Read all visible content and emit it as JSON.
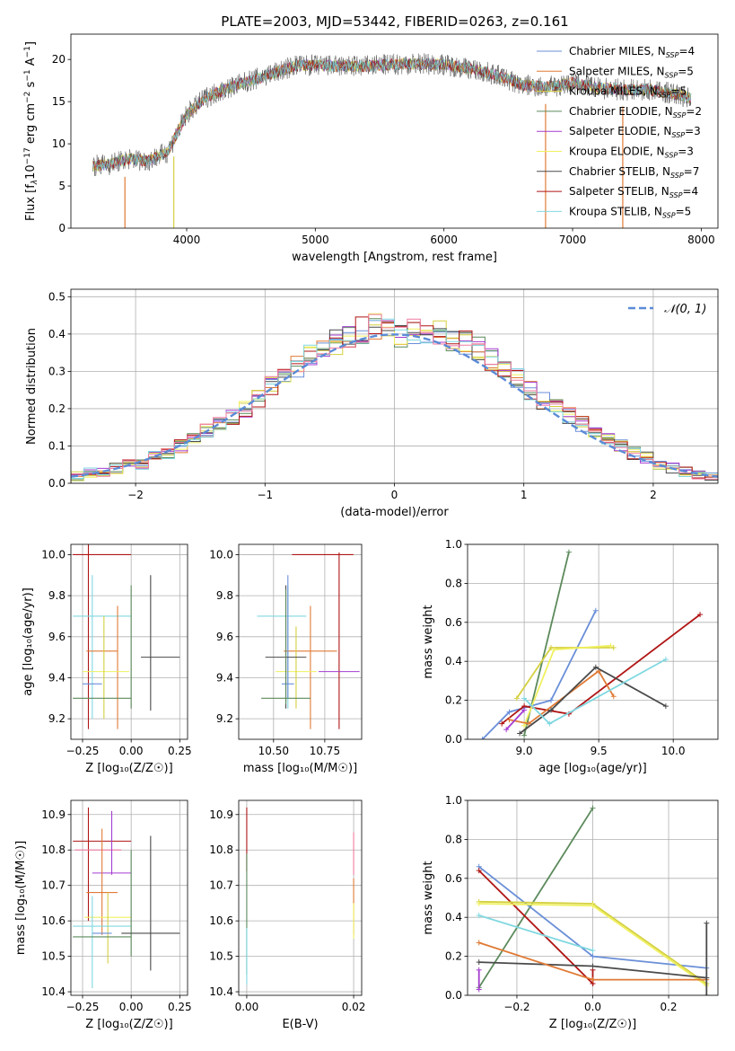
{
  "figure": {
    "title": "PLATE=2003, MJD=53442, FIBERID=0263, z=0.161"
  },
  "colors": {
    "Chabrier MILES": "#6a8fd8",
    "Salpeter MILES": "#e07a35",
    "Kroupa MILES": "#d4d040",
    "Chabrier ELODIE": "#5c8a5c",
    "Salpeter ELODIE": "#a53cd0",
    "Kroupa ELODIE": "#f0f060",
    "Chabrier STELIB": "#4a4a4a",
    "Salpeter STELIB": "#b01515",
    "Kroupa STELIB": "#80d8e0",
    "pink": "#f07aa0",
    "gauss": "#5b8bd6"
  },
  "chart_data": [
    {
      "id": "spectrum",
      "type": "line",
      "title": "PLATE=2003, MJD=53442, FIBERID=0263, z=0.161",
      "xlabel": "wavelength [Angstrom, rest frame]",
      "ylabel_parts": [
        "Flux [f",
        "λ",
        "10",
        "−17",
        " erg cm",
        "−2",
        " s",
        "−1",
        " A",
        "−1",
        "]"
      ],
      "xlim": [
        3100,
        8130
      ],
      "ylim": [
        0,
        23
      ],
      "xticks": [
        4000,
        5000,
        6000,
        7000,
        8000
      ],
      "yticks": [
        0,
        5,
        10,
        15,
        20
      ],
      "grid": false,
      "legend_loc": "upper right",
      "envelope": {
        "x": [
          3270,
          3400,
          3550,
          3700,
          3850,
          4000,
          4150,
          4300,
          4500,
          4700,
          4850,
          5000,
          5200,
          5400,
          5600,
          5800,
          6000,
          6200,
          6400,
          6600,
          6800,
          7000,
          7200,
          7400,
          7600,
          7800,
          7920
        ],
        "y": [
          7.4,
          7.6,
          8.2,
          8.0,
          9.0,
          13.5,
          15.5,
          16.5,
          17.5,
          18.5,
          19.3,
          19.3,
          19.2,
          19.2,
          19.4,
          19.5,
          19.4,
          18.9,
          18.2,
          17.0,
          16.7,
          17.2,
          16.6,
          16.4,
          16.4,
          15.9,
          15.4
        ]
      },
      "dips": [
        {
          "x": 3520,
          "y": 0
        },
        {
          "x": 3900,
          "y": 0
        },
        {
          "x": 6790,
          "y": 0
        },
        {
          "x": 7390,
          "y": 0
        }
      ],
      "series": [
        {
          "label": "Chabrier MILES",
          "nssp": "4",
          "color": "#6a8fd8"
        },
        {
          "label": "Salpeter MILES",
          "nssp": "5",
          "color": "#e07a35"
        },
        {
          "label": "Kroupa MILES",
          "nssp": "5",
          "color": "#d4d040"
        },
        {
          "label": "Chabrier ELODIE",
          "nssp": "2",
          "color": "#5c8a5c"
        },
        {
          "label": "Salpeter ELODIE",
          "nssp": "3",
          "color": "#a53cd0"
        },
        {
          "label": "Kroupa ELODIE",
          "nssp": "3",
          "color": "#f0f060"
        },
        {
          "label": "Chabrier STELIB",
          "nssp": "7",
          "color": "#4a4a4a"
        },
        {
          "label": "Salpeter STELIB",
          "nssp": "4",
          "color": "#b01515"
        },
        {
          "label": "Kroupa STELIB",
          "nssp": "5",
          "color": "#80d8e0"
        }
      ]
    },
    {
      "id": "hist",
      "type": "bar",
      "xlabel": "(data-model)/error",
      "ylabel": "Normed distribution",
      "xlim": [
        -2.5,
        2.5
      ],
      "ylim": [
        0,
        0.52
      ],
      "xticks": [
        -2,
        -1,
        0,
        1,
        2
      ],
      "xtick_labels": [
        "−2",
        "−1",
        "0",
        "1",
        "2"
      ],
      "yticks": [
        0,
        0.1,
        0.2,
        0.3,
        0.4,
        0.5
      ],
      "ytick_labels": [
        "0.0",
        "0.1",
        "0.2",
        "0.3",
        "0.4",
        "0.5"
      ],
      "grid": true,
      "legend_loc": "upper right",
      "gaussian": {
        "label": "𝒩(0, 1)",
        "color": "#5b8bd6"
      },
      "bin_edges_from": -2.5,
      "bin_width": 0.1,
      "nbins": 50,
      "base_values": [
        0.02,
        0.03,
        0.03,
        0.04,
        0.05,
        0.05,
        0.07,
        0.08,
        0.1,
        0.12,
        0.14,
        0.16,
        0.18,
        0.2,
        0.23,
        0.26,
        0.28,
        0.31,
        0.34,
        0.36,
        0.38,
        0.4,
        0.41,
        0.42,
        0.41,
        0.4,
        0.41,
        0.4,
        0.4,
        0.39,
        0.38,
        0.36,
        0.33,
        0.3,
        0.28,
        0.25,
        0.22,
        0.2,
        0.18,
        0.16,
        0.14,
        0.12,
        0.1,
        0.08,
        0.07,
        0.05,
        0.04,
        0.03,
        0.02,
        0.02
      ],
      "series_colors": [
        "#6a8fd8",
        "#e07a35",
        "#d4d040",
        "#5c8a5c",
        "#a53cd0",
        "#f0f060",
        "#4a4a4a",
        "#b01515",
        "#80d8e0",
        "#f07aa0"
      ]
    },
    {
      "id": "age_Z",
      "type": "scatter",
      "xlabel": "Z [log₁₀(Z/Z☉)]",
      "ylabel": "age  [log₁₀(age/yr)]",
      "xlim": [
        -0.31,
        0.29
      ],
      "ylim": [
        9.1,
        10.05
      ],
      "xticks": [
        -0.25,
        0,
        0.25
      ],
      "xtick_labels": [
        "−0.25",
        "0.00",
        "0.25"
      ],
      "yticks": [
        9.2,
        9.4,
        9.6,
        9.8,
        10.0
      ],
      "ytick_labels": [
        "9.2",
        "9.4",
        "9.6",
        "9.8",
        "10.0"
      ],
      "grid": true,
      "errorbars": [
        {
          "color": "#b01515",
          "x": -0.15,
          "xerr": 0.15,
          "y": 10.0,
          "yerr": 0
        },
        {
          "color": "#b01515",
          "x": -0.22,
          "xerr": 0,
          "y": 9.6,
          "yerr": 0.45
        },
        {
          "color": "#80d8e0",
          "x": -0.15,
          "xerr": 0.15,
          "y": 9.7,
          "yerr": 0
        },
        {
          "color": "#80d8e0",
          "x": -0.2,
          "xerr": 0,
          "y": 9.55,
          "yerr": 0.35
        },
        {
          "color": "#e07a35",
          "x": -0.15,
          "xerr": 0.08,
          "y": 9.53,
          "yerr": 0
        },
        {
          "color": "#e07a35",
          "x": -0.07,
          "xerr": 0,
          "y": 9.45,
          "yerr": 0.3
        },
        {
          "color": "#f0f060",
          "x": -0.13,
          "xerr": 0.12,
          "y": 9.43,
          "yerr": 0
        },
        {
          "color": "#d4d040",
          "x": -0.14,
          "xerr": 0,
          "y": 9.45,
          "yerr": 0.25
        },
        {
          "color": "#6a8fd8",
          "x": -0.2,
          "xerr": 0.05,
          "y": 9.37,
          "yerr": 0
        },
        {
          "color": "#4a4a4a",
          "x": 0.15,
          "xerr": 0.1,
          "y": 9.5,
          "yerr": 0
        },
        {
          "color": "#4a4a4a",
          "x": 0.1,
          "xerr": 0,
          "y": 9.57,
          "yerr": 0.33
        },
        {
          "color": "#5c8a5c",
          "x": 0.0,
          "xerr": 0,
          "y": 9.55,
          "yerr": 0.3
        },
        {
          "color": "#5c8a5c",
          "x": -0.15,
          "xerr": 0.15,
          "y": 9.3,
          "yerr": 0
        }
      ]
    },
    {
      "id": "age_mass",
      "type": "scatter",
      "xlabel": "mass [log₁₀(M/M☉)]",
      "ylabel": "",
      "xlim": [
        10.33,
        10.93
      ],
      "ylim": [
        9.1,
        10.05
      ],
      "xticks": [
        10.5,
        10.75
      ],
      "xtick_labels": [
        "10.50",
        "10.75"
      ],
      "yticks": [
        9.2,
        9.4,
        9.6,
        9.8,
        10.0
      ],
      "ytick_labels": [
        "9.2",
        "9.4",
        "9.6",
        "9.8",
        "10.0"
      ],
      "grid": true,
      "errorbars": [
        {
          "color": "#b01515",
          "x": 10.74,
          "xerr": 0.15,
          "y": 10.0,
          "yerr": 0
        },
        {
          "color": "#b01515",
          "x": 10.82,
          "xerr": 0,
          "y": 9.58,
          "yerr": 0.43
        },
        {
          "color": "#80d8e0",
          "x": 10.54,
          "xerr": 0.12,
          "y": 9.7,
          "yerr": 0
        },
        {
          "color": "#80d8e0",
          "x": 10.57,
          "xerr": 0,
          "y": 9.55,
          "yerr": 0.3
        },
        {
          "color": "#e07a35",
          "x": 10.68,
          "xerr": 0.13,
          "y": 9.53,
          "yerr": 0
        },
        {
          "color": "#e07a35",
          "x": 10.68,
          "xerr": 0,
          "y": 9.45,
          "yerr": 0.3
        },
        {
          "color": "#a53cd0",
          "x": 10.82,
          "xerr": 0.1,
          "y": 9.43,
          "yerr": 0
        },
        {
          "color": "#f0f060",
          "x": 10.61,
          "xerr": 0.1,
          "y": 9.43,
          "yerr": 0
        },
        {
          "color": "#d4d040",
          "x": 10.61,
          "xerr": 0,
          "y": 9.45,
          "yerr": 0.2
        },
        {
          "color": "#6a8fd8",
          "x": 10.57,
          "xerr": 0.03,
          "y": 9.37,
          "yerr": 0
        },
        {
          "color": "#6a8fd8",
          "x": 10.57,
          "xerr": 0,
          "y": 9.6,
          "yerr": 0.3
        },
        {
          "color": "#4a4a4a",
          "x": 10.56,
          "xerr": 0.1,
          "y": 9.5,
          "yerr": 0
        },
        {
          "color": "#4a4a4a",
          "x": 10.56,
          "xerr": 0,
          "y": 9.55,
          "yerr": 0.3
        },
        {
          "color": "#5c8a5c",
          "x": 10.56,
          "xerr": 0.12,
          "y": 9.3,
          "yerr": 0
        },
        {
          "color": "#5c8a5c",
          "x": 10.56,
          "xerr": 0,
          "y": 9.55,
          "yerr": 0.28
        }
      ]
    },
    {
      "id": "weight_age",
      "type": "line",
      "xlabel": "age  [log₁₀(age/yr)]",
      "ylabel": "mass weight",
      "xlim": [
        8.62,
        10.3
      ],
      "ylim": [
        0,
        1.0
      ],
      "xticks": [
        9.0,
        9.5,
        10.0
      ],
      "xtick_labels": [
        "9.0",
        "9.5",
        "10.0"
      ],
      "yticks": [
        0,
        0.2,
        0.4,
        0.6,
        0.8,
        1.0
      ],
      "ytick_labels": [
        "0.0",
        "0.2",
        "0.4",
        "0.6",
        "0.8",
        "1.0"
      ],
      "grid": true,
      "series": [
        {
          "color": "#5c8a5c",
          "x": [
            9.0,
            9.3
          ],
          "y": [
            0.02,
            0.96
          ]
        },
        {
          "color": "#6a8fd8",
          "x": [
            8.72,
            8.9,
            9.18,
            9.48
          ],
          "y": [
            0.0,
            0.14,
            0.2,
            0.66
          ]
        },
        {
          "color": "#b01515",
          "x": [
            8.85,
            9.0,
            9.3,
            10.18
          ],
          "y": [
            0.08,
            0.17,
            0.13,
            0.64
          ]
        },
        {
          "color": "#d4d040",
          "x": [
            8.95,
            9.18,
            9.6
          ],
          "y": [
            0.21,
            0.47,
            0.47
          ]
        },
        {
          "color": "#f0f060",
          "x": [
            9.0,
            9.2,
            9.58
          ],
          "y": [
            0.07,
            0.46,
            0.48
          ]
        },
        {
          "color": "#e07a35",
          "x": [
            8.9,
            9.03,
            9.5,
            9.6
          ],
          "y": [
            0.1,
            0.08,
            0.35,
            0.22
          ]
        },
        {
          "color": "#4a4a4a",
          "x": [
            8.97,
            9.18,
            9.48,
            9.95
          ],
          "y": [
            0.03,
            0.15,
            0.37,
            0.17
          ]
        },
        {
          "color": "#80d8e0",
          "x": [
            9.0,
            9.17,
            9.95
          ],
          "y": [
            0.21,
            0.08,
            0.41
          ]
        },
        {
          "color": "#a53cd0",
          "x": [
            8.88,
            9.0
          ],
          "y": [
            0.05,
            0.15
          ]
        }
      ]
    },
    {
      "id": "mass_Z",
      "type": "scatter",
      "xlabel": "Z [log₁₀(Z/Z☉)]",
      "ylabel": "mass [log₁₀(M/M☉)]",
      "xlim": [
        -0.31,
        0.29
      ],
      "ylim": [
        10.39,
        10.94
      ],
      "xticks": [
        -0.25,
        0,
        0.25
      ],
      "xtick_labels": [
        "−0.25",
        "0.00",
        "0.25"
      ],
      "yticks": [
        10.4,
        10.5,
        10.6,
        10.7,
        10.8,
        10.9
      ],
      "ytick_labels": [
        "10.4",
        "10.5",
        "10.6",
        "10.7",
        "10.8",
        "10.9"
      ],
      "grid": true,
      "errorbars": [
        {
          "color": "#b01515",
          "x": -0.15,
          "xerr": 0.15,
          "y": 10.825,
          "yerr": 0
        },
        {
          "color": "#b01515",
          "x": -0.22,
          "xerr": 0,
          "y": 10.76,
          "yerr": 0.16
        },
        {
          "color": "#f07aa0",
          "x": -0.17,
          "xerr": 0.12,
          "y": 10.8,
          "yerr": 0
        },
        {
          "color": "#a53cd0",
          "x": -0.1,
          "xerr": 0.1,
          "y": 10.735,
          "yerr": 0
        },
        {
          "color": "#a53cd0",
          "x": -0.1,
          "xerr": 0,
          "y": 10.82,
          "yerr": 0.09
        },
        {
          "color": "#e07a35",
          "x": -0.15,
          "xerr": 0.08,
          "y": 10.68,
          "yerr": 0
        },
        {
          "color": "#e07a35",
          "x": -0.15,
          "xerr": 0,
          "y": 10.71,
          "yerr": 0.15
        },
        {
          "color": "#f0f060",
          "x": -0.12,
          "xerr": 0.12,
          "y": 10.61,
          "yerr": 0
        },
        {
          "color": "#d4d040",
          "x": -0.12,
          "xerr": 0,
          "y": 10.58,
          "yerr": 0.1
        },
        {
          "color": "#80d8e0",
          "x": -0.15,
          "xerr": 0.15,
          "y": 10.585,
          "yerr": 0
        },
        {
          "color": "#80d8e0",
          "x": -0.2,
          "xerr": 0,
          "y": 10.54,
          "yerr": 0.13
        },
        {
          "color": "#6a8fd8",
          "x": -0.15,
          "xerr": 0.05,
          "y": 10.565,
          "yerr": 0
        },
        {
          "color": "#5c8a5c",
          "x": -0.15,
          "xerr": 0.15,
          "y": 10.555,
          "yerr": 0
        },
        {
          "color": "#5c8a5c",
          "x": 0.0,
          "xerr": 0,
          "y": 10.65,
          "yerr": 0.15
        },
        {
          "color": "#4a4a4a",
          "x": 0.1,
          "xerr": 0.15,
          "y": 10.565,
          "yerr": 0
        },
        {
          "color": "#4a4a4a",
          "x": 0.1,
          "xerr": 0,
          "y": 10.65,
          "yerr": 0.19
        }
      ]
    },
    {
      "id": "mass_ebv",
      "type": "scatter",
      "xlabel": "E(B-V)",
      "ylabel": "",
      "xlim": [
        -0.0015,
        0.0215
      ],
      "ylim": [
        10.39,
        10.94
      ],
      "xticks": [
        0.0,
        0.02
      ],
      "xtick_labels": [
        "0.00",
        "0.02"
      ],
      "yticks": [
        10.4,
        10.5,
        10.6,
        10.7,
        10.8,
        10.9
      ],
      "ytick_labels": [
        "10.4",
        "10.5",
        "10.6",
        "10.7",
        "10.8",
        "10.9"
      ],
      "grid": true,
      "errorbars": [
        {
          "color": "#b01515",
          "x": 0.0,
          "xerr": 0,
          "y": 10.83,
          "yerr": 0.09
        },
        {
          "color": "#5c8a5c",
          "x": 0.0,
          "xerr": 0,
          "y": 10.62,
          "yerr": 0.17
        },
        {
          "color": "#80d8e0",
          "x": 0.0,
          "xerr": 0,
          "y": 10.5,
          "yerr": 0.08
        },
        {
          "color": "#f07aa0",
          "x": 0.02,
          "xerr": 0,
          "y": 10.79,
          "yerr": 0.06
        },
        {
          "color": "#e07a35",
          "x": 0.02,
          "xerr": 0,
          "y": 10.64,
          "yerr": 0.08
        },
        {
          "color": "#f0f060",
          "x": 0.02,
          "xerr": 0,
          "y": 10.6,
          "yerr": 0.05
        }
      ]
    },
    {
      "id": "weight_Z",
      "type": "line",
      "xlabel": "Z [log₁₀(Z/Z☉)]",
      "ylabel": "mass weight",
      "xlim": [
        -0.33,
        0.33
      ],
      "ylim": [
        0,
        1.0
      ],
      "xticks": [
        -0.2,
        0.0,
        0.2
      ],
      "xtick_labels": [
        "−0.2",
        "0.0",
        "0.2"
      ],
      "yticks": [
        0,
        0.2,
        0.4,
        0.6,
        0.8,
        1.0
      ],
      "ytick_labels": [
        "0.0",
        "0.2",
        "0.4",
        "0.6",
        "0.8",
        "1.0"
      ],
      "grid": true,
      "series": [
        {
          "color": "#5c8a5c",
          "x": [
            -0.3,
            0.0
          ],
          "y": [
            0.04,
            0.96
          ]
        },
        {
          "color": "#6a8fd8",
          "x": [
            -0.3,
            0.0,
            0.3
          ],
          "y": [
            0.66,
            0.2,
            0.14
          ]
        },
        {
          "color": "#b01515",
          "x": [
            -0.3,
            0.0,
            0.0
          ],
          "y": [
            0.64,
            0.06,
            0.13
          ]
        },
        {
          "color": "#d4d040",
          "x": [
            -0.3,
            0.0,
            0.3
          ],
          "y": [
            0.48,
            0.47,
            0.06
          ]
        },
        {
          "color": "#f0f060",
          "x": [
            -0.3,
            0.0,
            0.3
          ],
          "y": [
            0.47,
            0.46,
            0.05
          ]
        },
        {
          "color": "#4a4a4a",
          "x": [
            -0.3,
            0.0,
            0.3
          ],
          "y": [
            0.17,
            0.15,
            0.09
          ]
        },
        {
          "color": "#80d8e0",
          "x": [
            -0.3,
            0.0
          ],
          "y": [
            0.41,
            0.23
          ]
        },
        {
          "color": "#e07a35",
          "x": [
            -0.3,
            0.0,
            0.3
          ],
          "y": [
            0.27,
            0.08,
            0.08
          ]
        },
        {
          "color": "#4a4a4a",
          "x": [
            0.3,
            0.3
          ],
          "y": [
            0.0,
            0.37
          ]
        },
        {
          "color": "#a53cd0",
          "x": [
            -0.3,
            -0.3
          ],
          "y": [
            0.03,
            0.13
          ]
        }
      ]
    }
  ]
}
